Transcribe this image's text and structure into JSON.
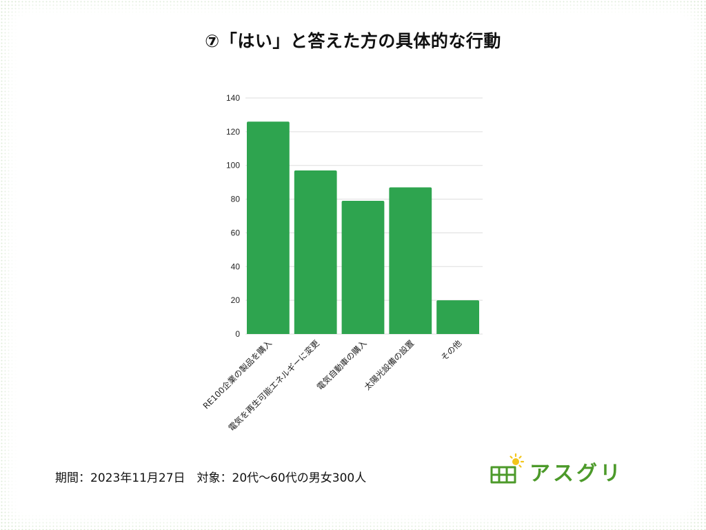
{
  "title": "⑦「はい」と答えた方の具体的な行動",
  "footer": {
    "period_label": "期間：",
    "period_value": "2023年11月27日",
    "target_label": "対象：",
    "target_value": "20代〜60代の男女300人"
  },
  "logo": {
    "text": "アスグリ",
    "color": "#4c9a2a",
    "sun_color": "#f2c51a"
  },
  "chart_data": {
    "type": "bar",
    "title": "⑦「はい」と答えた方の具体的な行動",
    "xlabel": "",
    "ylabel": "",
    "categories": [
      "RE100企業の製品を購入",
      "電気を再生可能エネルギーに変更",
      "電気自動車の購入",
      "太陽光設備の設置",
      "その他"
    ],
    "values": [
      126,
      97,
      79,
      87,
      20
    ],
    "ylim": [
      0,
      140
    ],
    "yticks": [
      0,
      20,
      40,
      60,
      80,
      100,
      120,
      140
    ],
    "grid": true,
    "legend": "none",
    "bar_color": "#2ea44f",
    "grid_color": "#dddddd"
  }
}
